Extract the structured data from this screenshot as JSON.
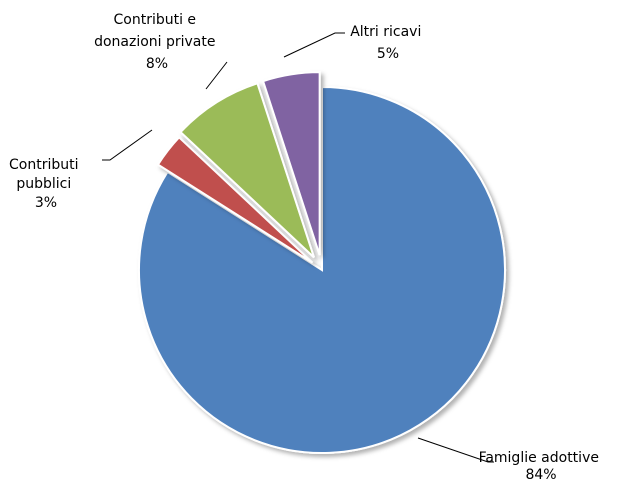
{
  "chart_data": {
    "type": "pie",
    "title": "",
    "slices": [
      {
        "label_lines": [
          "Famiglie adottive"
        ],
        "value": 84,
        "pct_label": "84%",
        "color": "#4F81BD"
      },
      {
        "label_lines": [
          "Contributi",
          "pubblici"
        ],
        "value": 3,
        "pct_label": "3%",
        "color": "#C0504D"
      },
      {
        "label_lines": [
          "Contributi e",
          "donazioni private"
        ],
        "value": 8,
        "pct_label": "8%",
        "color": "#9BBB59"
      },
      {
        "label_lines": [
          "Altri ricavi"
        ],
        "value": 5,
        "pct_label": "5%",
        "color": "#8064A2"
      }
    ],
    "exploded": true,
    "legend": "none"
  }
}
